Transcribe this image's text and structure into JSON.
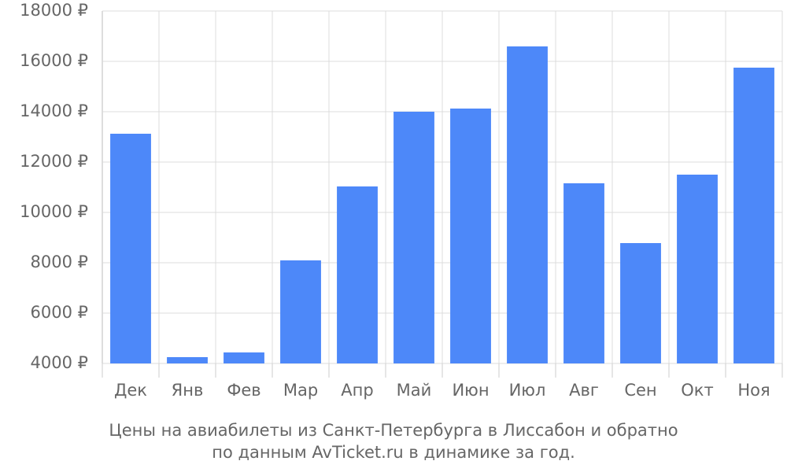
{
  "chart_data": {
    "type": "bar",
    "caption": [
      "Цены на авиабилеты из Санкт-Петербурга в Лиссабон и обратно",
      "по данным AvTicket.ru в динамике за год."
    ],
    "categories": [
      "Дек",
      "Янв",
      "Фев",
      "Мар",
      "Апр",
      "Май",
      "Июн",
      "Июл",
      "Авг",
      "Сен",
      "Окт",
      "Ноя"
    ],
    "values": [
      13125,
      4250,
      4437,
      8094,
      11031,
      14000,
      14125,
      16594,
      11156,
      8781,
      11500,
      15750
    ],
    "color": "#4d88f9",
    "ylim": [
      4000,
      18000
    ],
    "yticks": [
      {
        "value": 4000,
        "label": "4000 ₽"
      },
      {
        "value": 6000,
        "label": "6000 ₽"
      },
      {
        "value": 8000,
        "label": "8000 ₽"
      },
      {
        "value": 10000,
        "label": "10000 ₽"
      },
      {
        "value": 12000,
        "label": "12000 ₽"
      },
      {
        "value": 14000,
        "label": "14000 ₽"
      },
      {
        "value": 16000,
        "label": "16000 ₽"
      },
      {
        "value": 18000,
        "label": "18000 ₽"
      }
    ],
    "grid": true
  }
}
